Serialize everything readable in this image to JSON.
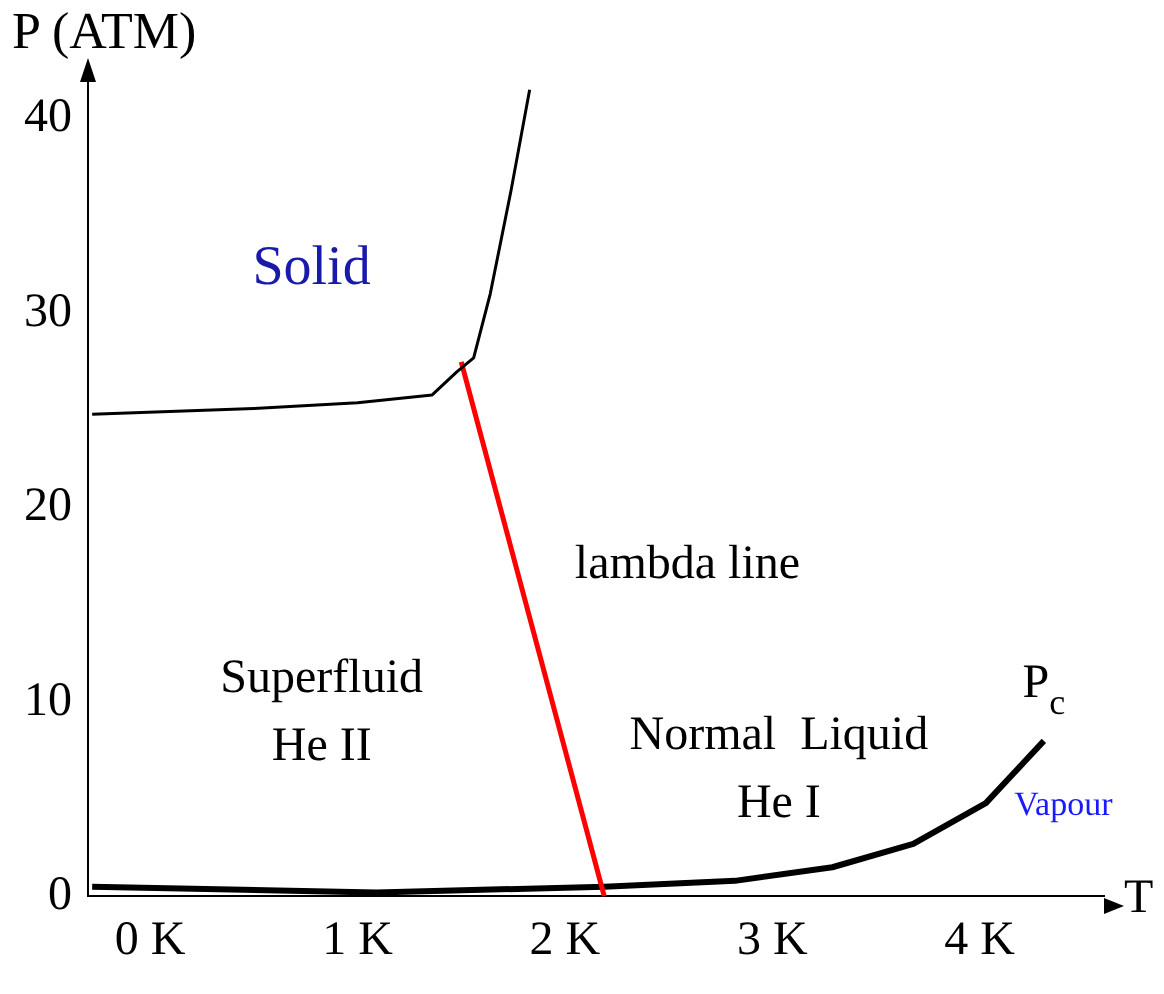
{
  "chart_data": {
    "type": "line",
    "xlabel": "T",
    "ylabel": "P (ATM)",
    "xlim": [
      -0.3,
      4.6
    ],
    "ylim": [
      0,
      42
    ],
    "xticks": [
      {
        "value": 0,
        "label": "0 K"
      },
      {
        "value": 1,
        "label": "1 K"
      },
      {
        "value": 2,
        "label": "2 K"
      },
      {
        "value": 3,
        "label": "3 K"
      },
      {
        "value": 4,
        "label": "4 K"
      }
    ],
    "yticks": [
      0,
      10,
      20,
      30,
      40
    ],
    "grid": false,
    "legend": false,
    "marker": "none",
    "line_style": "solid",
    "series": [
      {
        "color": "#000000",
        "x": [
          -0.28,
          0.5,
          1.0,
          1.36,
          1.48,
          1.56,
          1.64,
          1.74,
          1.83
        ],
        "values": [
          24.8,
          25.1,
          25.4,
          25.8,
          27.0,
          27.7,
          31.0,
          36.3,
          41.5
        ]
      },
      {
        "color": "#ff0000",
        "x": [
          1.5,
          2.19
        ],
        "values": [
          27.5,
          0
        ]
      },
      {
        "color": "#000000",
        "x": [
          -0.28,
          1.09,
          2.19,
          2.82,
          3.29,
          3.68,
          4.03,
          4.31
        ],
        "values": [
          0.5,
          0.2,
          0.5,
          0.8,
          1.5,
          2.7,
          4.8,
          8.0
        ]
      }
    ],
    "annotations": [
      "Solid",
      "lambda line",
      "Superfluid\nHe II",
      "Normal  Liquid\nHe I",
      {
        "text": "P$_{c}$",
        "x": 4.31,
        "y": 8.0
      },
      "Vapour"
    ]
  }
}
